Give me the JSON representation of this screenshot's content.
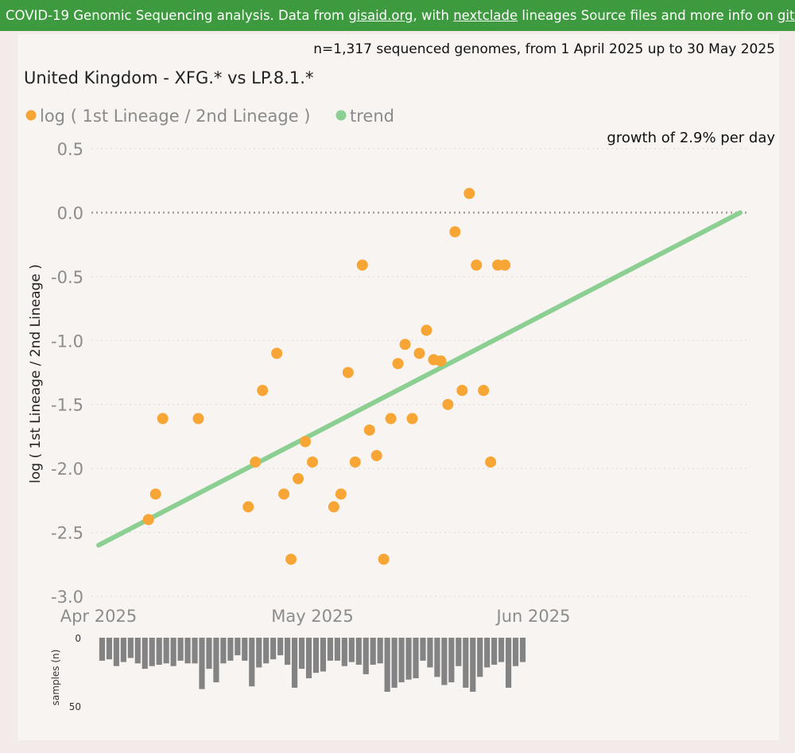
{
  "banner": {
    "prefix": "COVID-19 Genomic Sequencing analysis. Data from ",
    "link1": "gisaid.org",
    "mid1": ", with ",
    "link2": "nextclade",
    "mid2": " lineages Source files and more info on ",
    "link3": "github",
    "suffix": "."
  },
  "subtitle": "n=1,317 sequenced genomes, from 1 April 2025 up to 30 May 2025",
  "title": "United Kingdom - XFG.* vs LP.8.1.*",
  "growth_text": "growth of 2.9% per day",
  "colors": {
    "points": "#f7a534",
    "trend": "#8ccf92",
    "bars": "#838383",
    "banner": "#3e9a3e"
  },
  "chart_data": [
    {
      "type": "scatter",
      "title": "United Kingdom - XFG.* vs LP.8.1.*",
      "xlabel": "",
      "ylabel": "log ( 1st Lineage / 2nd Lineage )",
      "legend": [
        "log ( 1st Lineage / 2nd Lineage )",
        "trend"
      ],
      "legend_placement": "top-left",
      "ylim": [
        -3.0,
        0.5
      ],
      "y_ticks": [
        "0.5",
        "0.0",
        "-0.5",
        "-1.0",
        "-1.5",
        "-2.0",
        "-2.5",
        "-3.0"
      ],
      "x_ticks": [
        "Apr 2025",
        "May 2025",
        "Jun 2025"
      ],
      "xlim": [
        "2025-03-31",
        "2025-07-01"
      ],
      "grid": true,
      "series": [
        {
          "name": "log ( 1st Lineage / 2nd Lineage )",
          "points": [
            {
              "x": "2025-04-08",
              "y": -2.4
            },
            {
              "x": "2025-04-09",
              "y": -2.2
            },
            {
              "x": "2025-04-10",
              "y": -1.61
            },
            {
              "x": "2025-04-15",
              "y": -1.61
            },
            {
              "x": "2025-04-22",
              "y": -2.3
            },
            {
              "x": "2025-04-23",
              "y": -1.95
            },
            {
              "x": "2025-04-24",
              "y": -1.39
            },
            {
              "x": "2025-04-26",
              "y": -1.1
            },
            {
              "x": "2025-04-27",
              "y": -2.2
            },
            {
              "x": "2025-04-28",
              "y": -2.71
            },
            {
              "x": "2025-04-29",
              "y": -2.08
            },
            {
              "x": "2025-04-30",
              "y": -1.79
            },
            {
              "x": "2025-05-01",
              "y": -1.95
            },
            {
              "x": "2025-05-04",
              "y": -2.3
            },
            {
              "x": "2025-05-05",
              "y": -2.2
            },
            {
              "x": "2025-05-06",
              "y": -1.25
            },
            {
              "x": "2025-05-07",
              "y": -1.95
            },
            {
              "x": "2025-05-08",
              "y": -0.41
            },
            {
              "x": "2025-05-09",
              "y": -1.7
            },
            {
              "x": "2025-05-10",
              "y": -1.9
            },
            {
              "x": "2025-05-11",
              "y": -2.71
            },
            {
              "x": "2025-05-12",
              "y": -1.61
            },
            {
              "x": "2025-05-13",
              "y": -1.18
            },
            {
              "x": "2025-05-14",
              "y": -1.03
            },
            {
              "x": "2025-05-15",
              "y": -1.61
            },
            {
              "x": "2025-05-16",
              "y": -1.1
            },
            {
              "x": "2025-05-17",
              "y": -0.92
            },
            {
              "x": "2025-05-18",
              "y": -1.15
            },
            {
              "x": "2025-05-19",
              "y": -1.16
            },
            {
              "x": "2025-05-20",
              "y": -1.5
            },
            {
              "x": "2025-05-21",
              "y": -0.15
            },
            {
              "x": "2025-05-22",
              "y": -1.39
            },
            {
              "x": "2025-05-23",
              "y": 0.15
            },
            {
              "x": "2025-05-24",
              "y": -0.41
            },
            {
              "x": "2025-05-25",
              "y": -1.39
            },
            {
              "x": "2025-05-26",
              "y": -1.95
            },
            {
              "x": "2025-05-27",
              "y": -0.41
            },
            {
              "x": "2025-05-28",
              "y": -0.41
            }
          ]
        },
        {
          "name": "trend",
          "points": [
            {
              "x": "2025-04-01",
              "y": -2.6
            },
            {
              "x": "2025-06-30",
              "y": 0.0
            }
          ]
        }
      ]
    },
    {
      "type": "bar",
      "ylabel": "samples (n)",
      "y_ticks": [
        "0",
        "50"
      ],
      "ylim": [
        0,
        50
      ],
      "x": [
        "2025-04-01",
        "2025-04-02",
        "2025-04-03",
        "2025-04-04",
        "2025-04-05",
        "2025-04-06",
        "2025-04-07",
        "2025-04-08",
        "2025-04-09",
        "2025-04-10",
        "2025-04-11",
        "2025-04-12",
        "2025-04-13",
        "2025-04-14",
        "2025-04-15",
        "2025-04-16",
        "2025-04-17",
        "2025-04-18",
        "2025-04-19",
        "2025-04-20",
        "2025-04-21",
        "2025-04-22",
        "2025-04-23",
        "2025-04-24",
        "2025-04-25",
        "2025-04-26",
        "2025-04-27",
        "2025-04-28",
        "2025-04-29",
        "2025-04-30",
        "2025-05-01",
        "2025-05-02",
        "2025-05-03",
        "2025-05-04",
        "2025-05-05",
        "2025-05-06",
        "2025-05-07",
        "2025-05-08",
        "2025-05-09",
        "2025-05-10",
        "2025-05-11",
        "2025-05-12",
        "2025-05-13",
        "2025-05-14",
        "2025-05-15",
        "2025-05-16",
        "2025-05-17",
        "2025-05-18",
        "2025-05-19",
        "2025-05-20",
        "2025-05-21",
        "2025-05-22",
        "2025-05-23",
        "2025-05-24",
        "2025-05-25",
        "2025-05-26",
        "2025-05-27",
        "2025-05-28",
        "2025-05-29",
        "2025-05-30"
      ],
      "values": [
        17,
        16,
        21,
        18,
        15,
        19,
        23,
        21,
        20,
        19,
        21,
        17,
        19,
        19,
        38,
        23,
        33,
        19,
        17,
        13,
        17,
        36,
        22,
        19,
        16,
        13,
        20,
        37,
        23,
        30,
        26,
        25,
        17,
        17,
        21,
        18,
        20,
        27,
        20,
        19,
        40,
        37,
        33,
        31,
        30,
        17,
        22,
        29,
        35,
        33,
        21,
        37,
        40,
        29,
        22,
        20,
        18,
        37,
        21,
        18
      ]
    }
  ]
}
